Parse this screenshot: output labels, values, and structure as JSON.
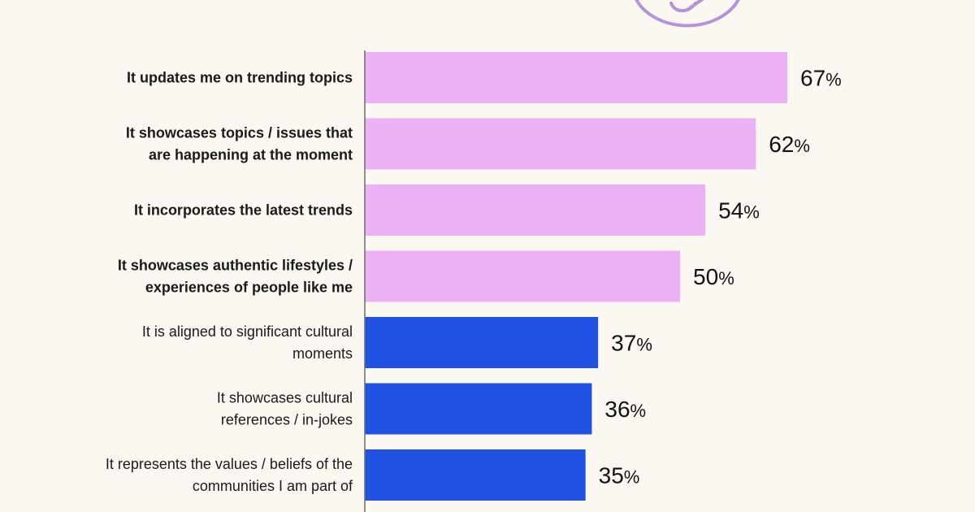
{
  "chart_data": {
    "type": "bar",
    "orientation": "horizontal",
    "categories": [
      "It updates me on trending topics",
      "It showcases topics / issues that are happening at the moment",
      "It incorporates the latest trends",
      "It showcases authentic lifestyles / experiences of people like me",
      "It is aligned to significant cultural moments",
      "It showcases cultural references / in-jokes",
      "It represents the values / beliefs of the communities I am part of"
    ],
    "label_lines": [
      [
        "It updates me on trending topics"
      ],
      [
        "It showcases topics / issues that",
        "are happening at the moment"
      ],
      [
        "It incorporates the latest trends"
      ],
      [
        "It showcases authentic lifestyles /",
        "experiences of people like me"
      ],
      [
        "It is aligned to significant cultural",
        "moments"
      ],
      [
        "It showcases cultural",
        "references / in-jokes"
      ],
      [
        "It represents the values / beliefs of the",
        "communities I am part of"
      ]
    ],
    "values": [
      67,
      62,
      54,
      50,
      37,
      36,
      35
    ],
    "value_suffix": "%",
    "xlim": [
      0,
      100
    ],
    "emphasized": [
      true,
      true,
      true,
      true,
      false,
      false,
      false
    ],
    "colors": {
      "emphasized": "#ebb1f4",
      "regular": "#2152e3",
      "axis": "#6a6a6a",
      "logo": "#b493d8"
    },
    "grid": false,
    "legend": "none"
  }
}
